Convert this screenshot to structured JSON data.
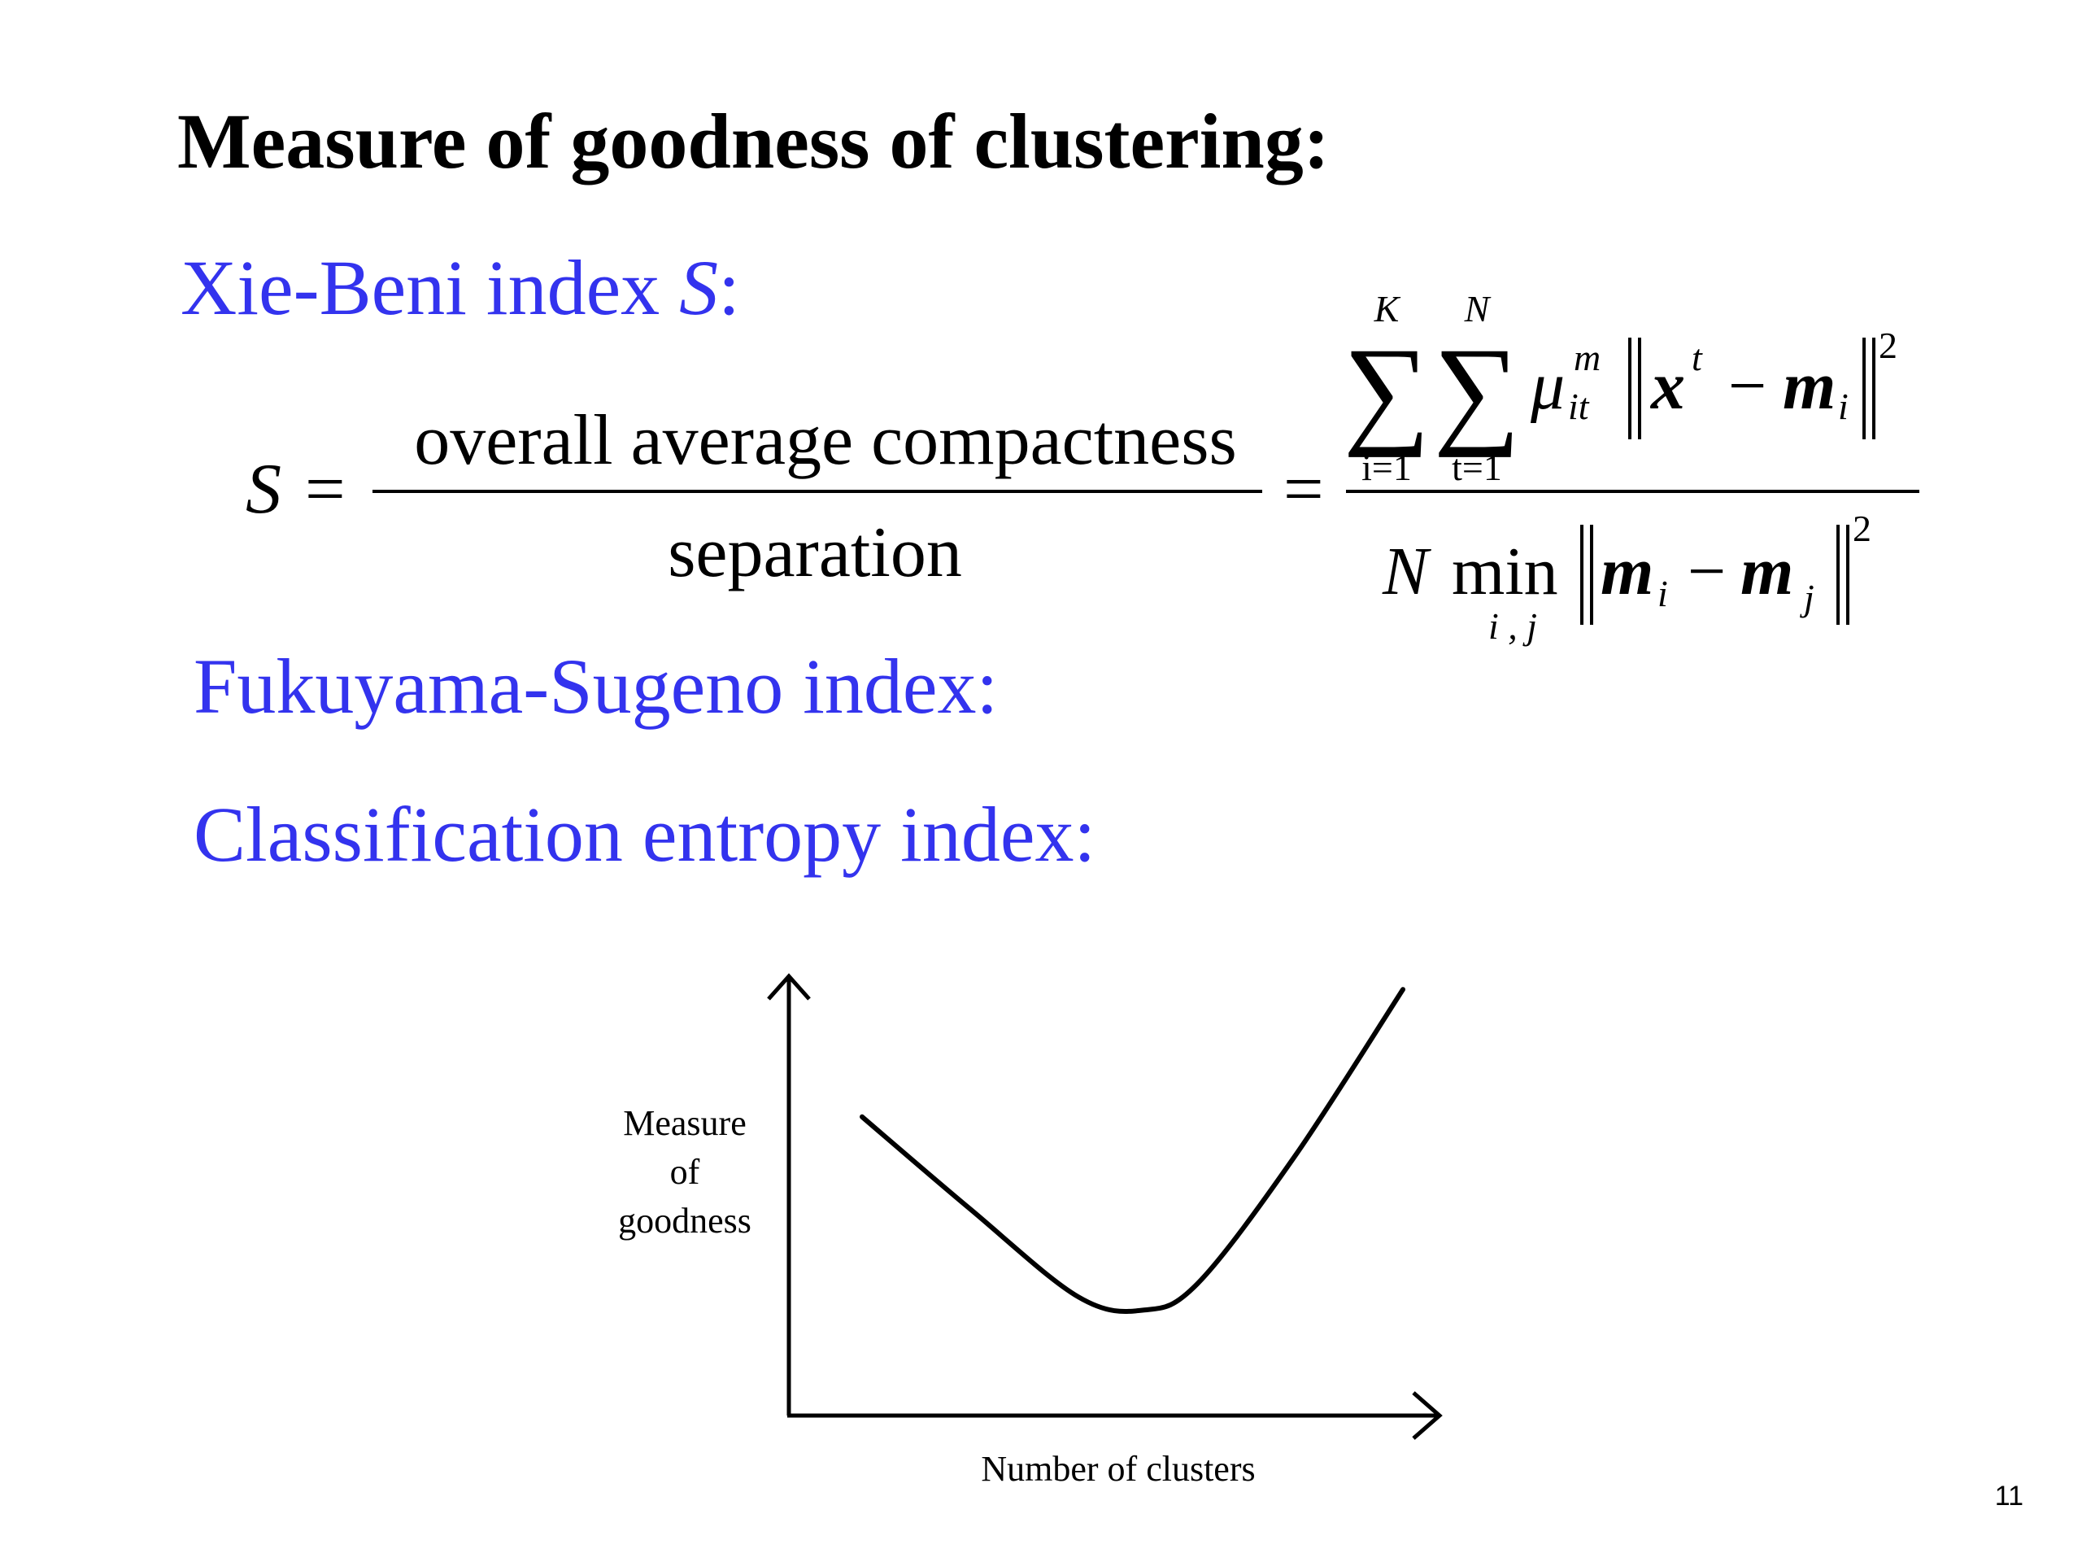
{
  "slide": {
    "title": "Measure of goodness of clustering:",
    "page_number": "11"
  },
  "xie_beni": {
    "heading_prefix": "Xie-Beni index ",
    "heading_var": "S",
    "heading_suffix": ":",
    "formula": {
      "lhs": "S",
      "equals": "=",
      "numerator_text": "overall average compactness",
      "denominator_text": "separation",
      "sum1_upper": "K",
      "sum1_lower": "i=1",
      "sum2_upper": "N",
      "sum2_lower": "t=1",
      "mu": "μ",
      "mu_sup": "m",
      "mu_sub": "it",
      "x": "x",
      "x_sup": "t",
      "minus": "−",
      "m": "m",
      "m_sub_i": "i",
      "m_sub_j": "j",
      "square": "2",
      "N": "N",
      "min": "min",
      "min_sub": "i , j"
    }
  },
  "fukuyama_sugeno": {
    "heading": "Fukuyama-Sugeno index:"
  },
  "classification_entropy": {
    "heading": "Classification entropy index:"
  },
  "chart_data": {
    "type": "line",
    "ylabel_lines": [
      "Measure",
      "of",
      "goodness"
    ],
    "xlabel": "Number of clusters",
    "axes": {
      "ticks": false,
      "arrows": true,
      "grid": false
    },
    "curve": {
      "shape": "U",
      "color": "#000000",
      "points": [
        [
          0.0,
          0.68
        ],
        [
          0.2,
          0.47
        ],
        [
          0.4,
          0.27
        ],
        [
          0.52,
          0.24
        ],
        [
          0.62,
          0.3
        ],
        [
          0.8,
          0.59
        ],
        [
          1.0,
          0.97
        ]
      ]
    }
  },
  "colors": {
    "heading_blue": "#3333ee",
    "text": "#000000"
  }
}
